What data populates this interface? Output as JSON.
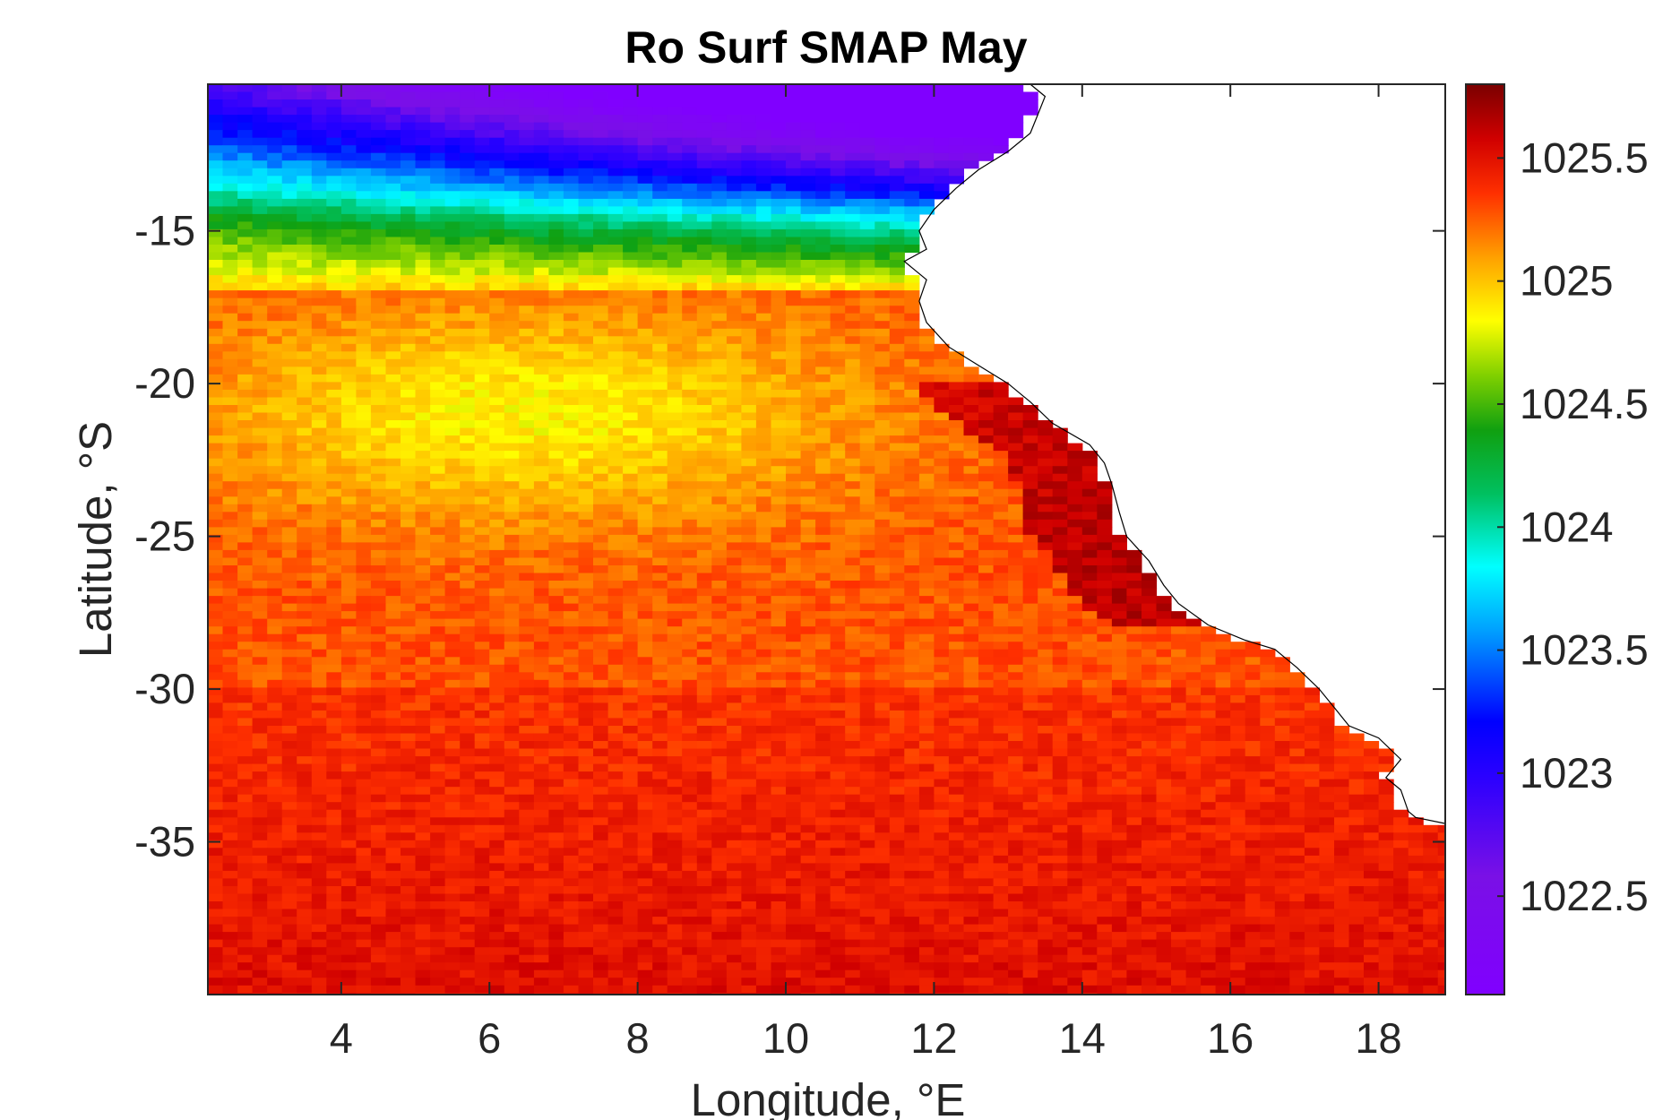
{
  "chart_data": {
    "type": "heatmap",
    "title": "Ro Surf SMAP May",
    "xlabel": "Longitude, °E",
    "ylabel": "Latitude, °S",
    "xlim": [
      2.2,
      18.9
    ],
    "ylim": [
      -40.0,
      -10.2
    ],
    "x_ticks": [
      4,
      6,
      8,
      10,
      12,
      14,
      16,
      18
    ],
    "x_tick_labels": [
      "4",
      "6",
      "8",
      "10",
      "12",
      "14",
      "16",
      "18"
    ],
    "y_ticks": [
      -15,
      -20,
      -25,
      -30,
      -35
    ],
    "y_tick_labels": [
      "-15",
      "-20",
      "-25",
      "-30",
      "-35"
    ],
    "grid": false,
    "colorbar": {
      "clim": [
        1022.1,
        1025.8
      ],
      "ticks": [
        1025.5,
        1025,
        1024.5,
        1024,
        1023.5,
        1023,
        1022.5
      ],
      "tick_labels": [
        "1025.5",
        "1025",
        "1024.5",
        "1024",
        "1023.5",
        "1023",
        "1022.5"
      ],
      "colormap": "jet-like, violet (low) → blue → cyan → green → yellow → orange → red → dark red (high)"
    },
    "field_description": "Sea surface density: lowest (~1022.5, violet) near 10–13°E, 11–13°S; low band (blue/cyan/green) along the northern edge; mid values (yellow/orange ~1024.7–1025.0) at 3–11°E, 13–24°S; high values (red/dark red ~1025.3–1025.7) in the south and along the coast at 13–15°E, 22–27°S.",
    "land": "white area east of the coastline (Namibia / South Africa), outlined by a thin black coastline"
  }
}
